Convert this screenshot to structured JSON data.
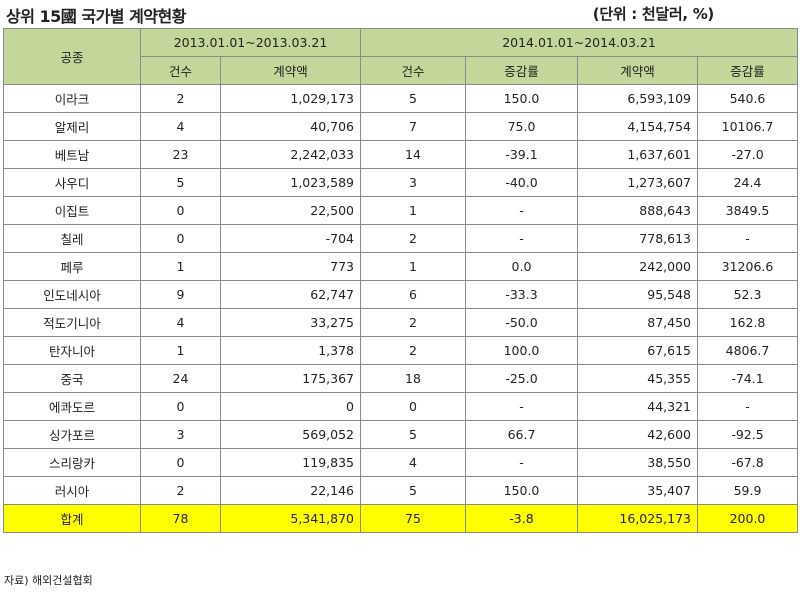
{
  "title": "상위 15國 국가별 계약현황",
  "unit": "(단위 : 천달러, %)",
  "header": {
    "category": "공종",
    "period1": "2013.01.01~2013.03.21",
    "period2": "2014.01.01~2014.03.21",
    "cols": [
      "건수",
      "계약액",
      "건수",
      "증감률",
      "계약액",
      "증감률"
    ]
  },
  "rows": [
    [
      "이라크",
      "2",
      "1,029,173",
      "5",
      "150.0",
      "6,593,109",
      "540.6"
    ],
    [
      "알제리",
      "4",
      "40,706",
      "7",
      "75.0",
      "4,154,754",
      "10106.7"
    ],
    [
      "베트남",
      "23",
      "2,242,033",
      "14",
      "-39.1",
      "1,637,601",
      "-27.0"
    ],
    [
      "사우디",
      "5",
      "1,023,589",
      "3",
      "-40.0",
      "1,273,607",
      "24.4"
    ],
    [
      "이집트",
      "0",
      "22,500",
      "1",
      "-",
      "888,643",
      "3849.5"
    ],
    [
      "칠레",
      "0",
      "-704",
      "2",
      "-",
      "778,613",
      "-"
    ],
    [
      "페루",
      "1",
      "773",
      "1",
      "0.0",
      "242,000",
      "31206.6"
    ],
    [
      "인도네시아",
      "9",
      "62,747",
      "6",
      "-33.3",
      "95,548",
      "52.3"
    ],
    [
      "적도기니아",
      "4",
      "33,275",
      "2",
      "-50.0",
      "87,450",
      "162.8"
    ],
    [
      "탄자니아",
      "1",
      "1,378",
      "2",
      "100.0",
      "67,615",
      "4806.7"
    ],
    [
      "중국",
      "24",
      "175,367",
      "18",
      "-25.0",
      "45,355",
      "-74.1"
    ],
    [
      "에콰도르",
      "0",
      "0",
      "0",
      "-",
      "44,321",
      "-"
    ],
    [
      "싱가포르",
      "3",
      "569,052",
      "5",
      "66.7",
      "42,600",
      "-92.5"
    ],
    [
      "스리랑카",
      "0",
      "119,835",
      "4",
      "-",
      "38,550",
      "-67.8"
    ],
    [
      "러시아",
      "2",
      "22,146",
      "5",
      "150.0",
      "35,407",
      "59.9"
    ]
  ],
  "total": [
    "합계",
    "78",
    "5,341,870",
    "75",
    "-3.8",
    "16,025,173",
    "200.0"
  ],
  "source": "자료) 해외건설협회"
}
